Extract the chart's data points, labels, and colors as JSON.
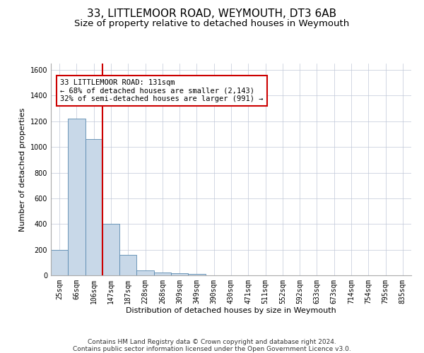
{
  "title1": "33, LITTLEMOOR ROAD, WEYMOUTH, DT3 6AB",
  "title2": "Size of property relative to detached houses in Weymouth",
  "xlabel": "Distribution of detached houses by size in Weymouth",
  "ylabel": "Number of detached properties",
  "categories": [
    "25sqm",
    "66sqm",
    "106sqm",
    "147sqm",
    "187sqm",
    "228sqm",
    "268sqm",
    "309sqm",
    "349sqm",
    "390sqm",
    "430sqm",
    "471sqm",
    "511sqm",
    "552sqm",
    "592sqm",
    "633sqm",
    "673sqm",
    "714sqm",
    "754sqm",
    "795sqm",
    "835sqm"
  ],
  "values": [
    200,
    1220,
    1060,
    400,
    160,
    40,
    20,
    15,
    10,
    0,
    0,
    0,
    0,
    0,
    0,
    0,
    0,
    0,
    0,
    0,
    0
  ],
  "bar_color": "#c8d8e8",
  "bar_edge_color": "#5a8ab0",
  "vline_x": 2.5,
  "vline_color": "#cc0000",
  "annotation_text": "33 LITTLEMOOR ROAD: 131sqm\n← 68% of detached houses are smaller (2,143)\n32% of semi-detached houses are larger (991) →",
  "annotation_box_color": "#cc0000",
  "ylim": [
    0,
    1650
  ],
  "yticks": [
    0,
    200,
    400,
    600,
    800,
    1000,
    1200,
    1400,
    1600
  ],
  "footer1": "Contains HM Land Registry data © Crown copyright and database right 2024.",
  "footer2": "Contains public sector information licensed under the Open Government Licence v3.0.",
  "bg_color": "#ffffff",
  "grid_color": "#c0c8d8",
  "title1_fontsize": 11,
  "title2_fontsize": 9.5,
  "axis_label_fontsize": 8,
  "tick_fontsize": 7,
  "annotation_fontsize": 7.5,
  "footer_fontsize": 6.5
}
